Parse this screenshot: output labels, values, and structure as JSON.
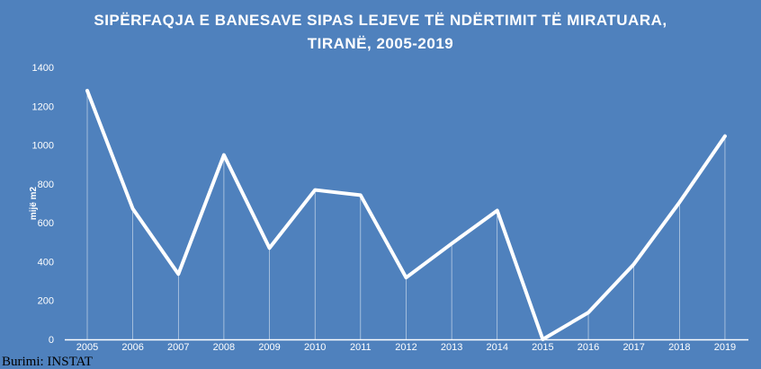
{
  "chart_data": {
    "type": "line",
    "title_line1": "SIPËRFAQJA  E BANESAVE  SIPAS  LEJEVE  TË  NDËRTIMIT  TË  MIRATUARA,",
    "title_line2": "TIRANË,  2005-2019",
    "xlabel": "",
    "ylabel": "mijë m2",
    "ylim": [
      0,
      1400
    ],
    "yticks": [
      0,
      200,
      400,
      600,
      800,
      1000,
      1200,
      1400
    ],
    "categories": [
      "2005",
      "2006",
      "2007",
      "2008",
      "2009",
      "2010",
      "2011",
      "2012",
      "2013",
      "2014",
      "2015",
      "2016",
      "2017",
      "2018",
      "2019"
    ],
    "series": [
      {
        "name": "Sipërfaqja",
        "values": [
          1280,
          672,
          336,
          949,
          470,
          769,
          742,
          318,
          493,
          663,
          0,
          138,
          387,
          705,
          1046
        ]
      }
    ],
    "grid": false,
    "drop_lines": true,
    "colors": {
      "background": "#4f81bd",
      "line": "#ffffff"
    }
  },
  "source": "Burimi: INSTAT"
}
